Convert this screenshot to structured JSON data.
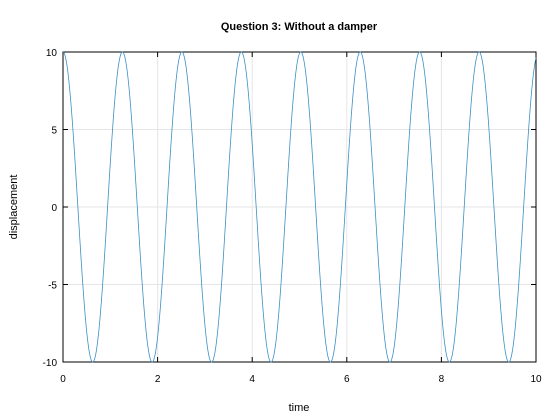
{
  "chart_data": {
    "type": "line",
    "title": "Question 3: Without a damper",
    "xlabel": "time",
    "ylabel": "displacement",
    "xlim": [
      0,
      10
    ],
    "ylim": [
      -10,
      10
    ],
    "xticks": [
      0,
      2,
      4,
      6,
      8,
      10
    ],
    "yticks": [
      -10,
      -5,
      0,
      5,
      10
    ],
    "xtick_labels": [
      "0",
      "2",
      "4",
      "6",
      "8",
      "10"
    ],
    "ytick_labels": [
      "-10",
      "-5",
      "0",
      "5",
      "10"
    ],
    "grid": true,
    "series": [
      {
        "function": "displacement = 10·cos(5·time)",
        "amplitude": 10,
        "angular_frequency": 5,
        "color": "#3a8fc7"
      }
    ]
  }
}
